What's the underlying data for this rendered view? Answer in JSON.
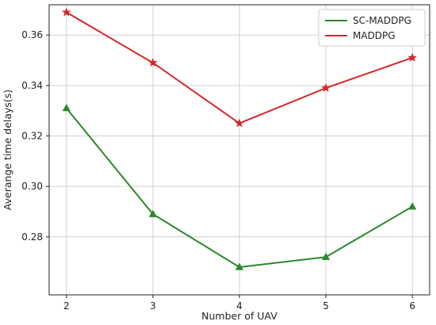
{
  "chart_data": {
    "type": "line",
    "x": [
      2,
      3,
      4,
      5,
      6
    ],
    "xlabel": "Number of UAV",
    "ylabel": "Averange time delays(s)",
    "xlim": [
      1.8,
      6.2
    ],
    "ylim": [
      0.257,
      0.372
    ],
    "xticks": [
      "2",
      "3",
      "4",
      "5",
      "6"
    ],
    "yticks": [
      "0.28",
      "0.30",
      "0.32",
      "0.34",
      "0.36"
    ],
    "ytick_values": [
      0.28,
      0.3,
      0.32,
      0.34,
      0.36
    ],
    "grid": true,
    "legend_position": "top-right",
    "series": [
      {
        "name": "SC-MADDPG",
        "color": "#2a8a2a",
        "marker": "triangle",
        "values": [
          0.331,
          0.289,
          0.268,
          0.272,
          0.292
        ]
      },
      {
        "name": "MADDPG",
        "color": "#d62728",
        "marker": "star",
        "values": [
          0.369,
          0.349,
          0.325,
          0.339,
          0.351
        ]
      }
    ]
  }
}
